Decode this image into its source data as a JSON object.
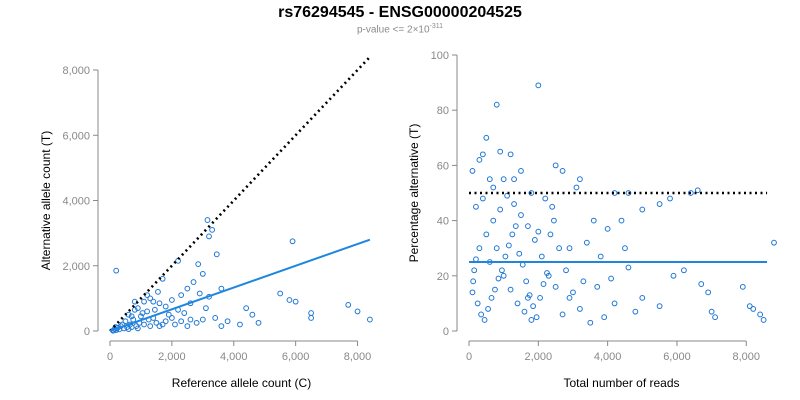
{
  "title": "rs76294545 - ENSG00000204525",
  "subtitle": {
    "prefix": "p-value <= 2×10",
    "exponent": "-311"
  },
  "colors": {
    "point": "#1f77d4",
    "fit": "#1f86e0",
    "expected": "#000000",
    "axis": "#888888"
  },
  "chart_data": [
    {
      "type": "scatter",
      "xlabel": "Reference allele count (C)",
      "ylabel": "Alternative allele count (T)",
      "xlim": [
        0,
        8500
      ],
      "ylim": [
        0,
        8000
      ],
      "xticks": [
        0,
        2000,
        4000,
        6000,
        8000
      ],
      "xtick_labels": [
        "0",
        "2,000",
        "4,000",
        "6,000",
        "8,000"
      ],
      "yticks": [
        0,
        2000,
        4000,
        6000,
        8000
      ],
      "ytick_labels": [
        "0",
        "2,000",
        "4,000",
        "6,000",
        "8,000"
      ],
      "grid": false,
      "reference_line": {
        "style": "dotted",
        "color": "black",
        "x": [
          0,
          8400
        ],
        "y": [
          0,
          8400
        ]
      },
      "fit_line": {
        "style": "solid",
        "color": "blue",
        "x": [
          0,
          8400
        ],
        "y": [
          0,
          2800
        ]
      },
      "points": [
        [
          2200,
          2150
        ],
        [
          3150,
          3400
        ],
        [
          3300,
          3100
        ],
        [
          3200,
          2900
        ],
        [
          3450,
          2350
        ],
        [
          2850,
          2050
        ],
        [
          3000,
          1750
        ],
        [
          1700,
          1600
        ],
        [
          1550,
          1200
        ],
        [
          1300,
          1000
        ],
        [
          1100,
          900
        ],
        [
          900,
          700
        ],
        [
          800,
          650
        ],
        [
          600,
          500
        ],
        [
          700,
          450
        ],
        [
          1600,
          850
        ],
        [
          2000,
          950
        ],
        [
          2500,
          1300
        ],
        [
          2700,
          1500
        ],
        [
          2900,
          1150
        ],
        [
          3200,
          1050
        ],
        [
          2300,
          1100
        ],
        [
          200,
          1850
        ],
        [
          5900,
          2750
        ],
        [
          3600,
          1300
        ],
        [
          4400,
          700
        ],
        [
          4600,
          500
        ],
        [
          5500,
          1150
        ],
        [
          5800,
          950
        ],
        [
          6000,
          900
        ],
        [
          6500,
          550
        ],
        [
          6500,
          400
        ],
        [
          7700,
          800
        ],
        [
          8000,
          600
        ],
        [
          8400,
          350
        ],
        [
          3800,
          300
        ],
        [
          4800,
          250
        ],
        [
          2600,
          350
        ],
        [
          4200,
          200
        ],
        [
          3400,
          400
        ],
        [
          2100,
          200
        ],
        [
          1800,
          300
        ],
        [
          1600,
          150
        ],
        [
          1400,
          400
        ],
        [
          1200,
          600
        ],
        [
          1000,
          450
        ],
        [
          950,
          250
        ],
        [
          850,
          150
        ],
        [
          750,
          350
        ],
        [
          650,
          200
        ],
        [
          550,
          120
        ],
        [
          500,
          300
        ],
        [
          450,
          80
        ],
        [
          400,
          200
        ],
        [
          350,
          150
        ],
        [
          300,
          50
        ],
        [
          250,
          100
        ],
        [
          200,
          30
        ],
        [
          180,
          120
        ],
        [
          150,
          60
        ],
        [
          120,
          20
        ],
        [
          100,
          10
        ],
        [
          600,
          60
        ],
        [
          700,
          120
        ],
        [
          900,
          80
        ],
        [
          1100,
          200
        ],
        [
          1300,
          150
        ],
        [
          1500,
          250
        ],
        [
          1700,
          200
        ],
        [
          1900,
          500
        ],
        [
          2200,
          650
        ],
        [
          2400,
          550
        ],
        [
          2600,
          850
        ],
        [
          1800,
          750
        ],
        [
          1450,
          650
        ],
        [
          1250,
          350
        ],
        [
          1050,
          550
        ],
        [
          800,
          900
        ],
        [
          1200,
          1100
        ],
        [
          1400,
          900
        ],
        [
          2000,
          400
        ],
        [
          2300,
          300
        ],
        [
          2800,
          250
        ],
        [
          3100,
          700
        ],
        [
          2500,
          150
        ],
        [
          3000,
          350
        ],
        [
          3600,
          150
        ]
      ]
    },
    {
      "type": "scatter",
      "xlabel": "Total number of reads",
      "ylabel": "Percentage alternative (T)",
      "xlim": [
        0,
        8800
      ],
      "ylim": [
        0,
        100
      ],
      "xticks": [
        0,
        2000,
        4000,
        6000,
        8000
      ],
      "xtick_labels": [
        "0",
        "2,000",
        "4,000",
        "6,000",
        "8,000"
      ],
      "yticks": [
        0,
        20,
        40,
        60,
        80,
        100
      ],
      "ytick_labels": [
        "0",
        "20",
        "40",
        "60",
        "80",
        "100"
      ],
      "grid": false,
      "reference_line": {
        "style": "dotted",
        "color": "black",
        "x": [
          0,
          8600
        ],
        "y": [
          50,
          50
        ]
      },
      "fit_line": {
        "style": "solid",
        "color": "blue",
        "x": [
          0,
          8600
        ],
        "y": [
          25,
          25
        ]
      },
      "points": [
        [
          800,
          82
        ],
        [
          2000,
          89
        ],
        [
          500,
          70
        ],
        [
          400,
          64
        ],
        [
          900,
          65
        ],
        [
          1200,
          64
        ],
        [
          300,
          62
        ],
        [
          100,
          58
        ],
        [
          1500,
          58
        ],
        [
          2500,
          60
        ],
        [
          2700,
          58
        ],
        [
          3200,
          55
        ],
        [
          3100,
          52
        ],
        [
          600,
          55
        ],
        [
          1000,
          55
        ],
        [
          1800,
          50
        ],
        [
          2200,
          48
        ],
        [
          2400,
          45
        ],
        [
          4200,
          50
        ],
        [
          4600,
          50
        ],
        [
          5500,
          46
        ],
        [
          5800,
          48
        ],
        [
          6400,
          50
        ],
        [
          6600,
          51
        ],
        [
          8800,
          32
        ],
        [
          3600,
          40
        ],
        [
          4400,
          40
        ],
        [
          5000,
          44
        ],
        [
          4000,
          37
        ],
        [
          3400,
          32
        ],
        [
          2900,
          30
        ],
        [
          3800,
          27
        ],
        [
          4600,
          23
        ],
        [
          5900,
          20
        ],
        [
          6200,
          22
        ],
        [
          6700,
          17
        ],
        [
          6900,
          14
        ],
        [
          7000,
          7
        ],
        [
          7100,
          5
        ],
        [
          7900,
          16
        ],
        [
          8100,
          9
        ],
        [
          8200,
          8
        ],
        [
          8400,
          6
        ],
        [
          8500,
          4
        ],
        [
          5000,
          12
        ],
        [
          5500,
          9
        ],
        [
          4800,
          7
        ],
        [
          4200,
          10
        ],
        [
          3900,
          5
        ],
        [
          3500,
          3
        ],
        [
          3200,
          8
        ],
        [
          2900,
          12
        ],
        [
          2700,
          6
        ],
        [
          2500,
          16
        ],
        [
          2300,
          20
        ],
        [
          2100,
          27
        ],
        [
          1900,
          33
        ],
        [
          1700,
          38
        ],
        [
          1500,
          42
        ],
        [
          1300,
          46
        ],
        [
          1100,
          49
        ],
        [
          900,
          44
        ],
        [
          700,
          40
        ],
        [
          500,
          35
        ],
        [
          300,
          30
        ],
        [
          200,
          26
        ],
        [
          150,
          22
        ],
        [
          120,
          18
        ],
        [
          100,
          14
        ],
        [
          250,
          10
        ],
        [
          350,
          6
        ],
        [
          450,
          4
        ],
        [
          550,
          8
        ],
        [
          650,
          12
        ],
        [
          750,
          15
        ],
        [
          850,
          19
        ],
        [
          950,
          22
        ],
        [
          1050,
          27
        ],
        [
          1150,
          31
        ],
        [
          1250,
          35
        ],
        [
          1350,
          38
        ],
        [
          1450,
          28
        ],
        [
          1550,
          24
        ],
        [
          1650,
          18
        ],
        [
          1750,
          13
        ],
        [
          1850,
          9
        ],
        [
          1950,
          5
        ],
        [
          2050,
          12
        ],
        [
          2150,
          17
        ],
        [
          2250,
          21
        ],
        [
          2350,
          35
        ],
        [
          2450,
          40
        ],
        [
          2600,
          30
        ],
        [
          2800,
          22
        ],
        [
          3000,
          14
        ],
        [
          3300,
          18
        ],
        [
          600,
          25
        ],
        [
          800,
          30
        ],
        [
          1000,
          20
        ],
        [
          1200,
          15
        ],
        [
          1400,
          10
        ],
        [
          1600,
          7
        ],
        [
          1800,
          4
        ],
        [
          400,
          48
        ],
        [
          700,
          52
        ],
        [
          200,
          45
        ],
        [
          1300,
          55
        ],
        [
          1700,
          12
        ],
        [
          2000,
          36
        ],
        [
          3700,
          16
        ],
        [
          4100,
          19
        ],
        [
          4500,
          30
        ]
      ]
    }
  ]
}
